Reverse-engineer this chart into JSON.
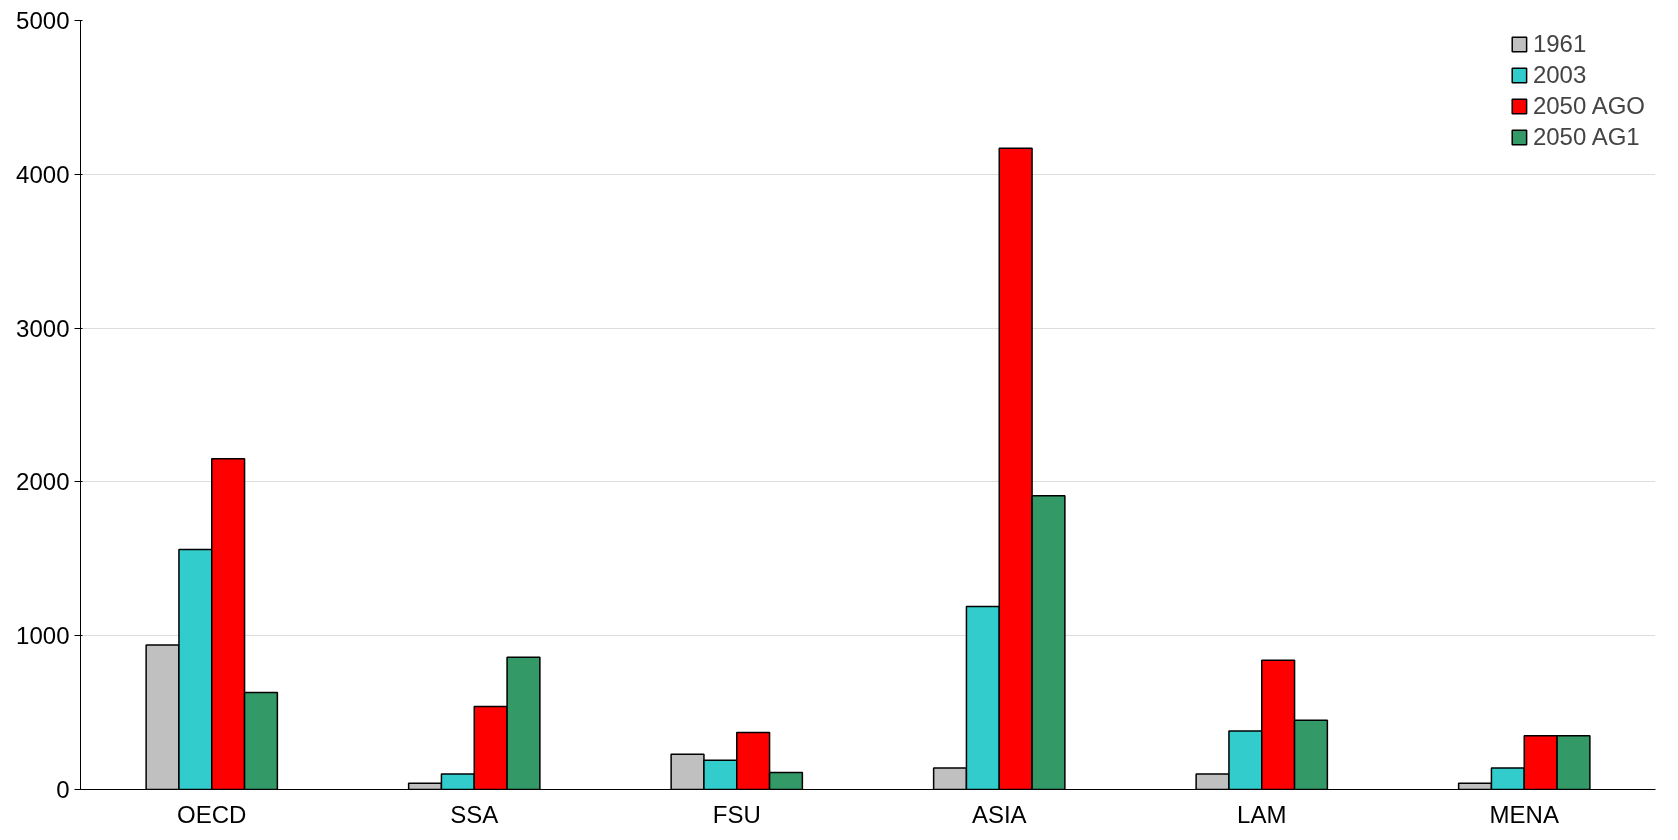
{
  "chart_data": {
    "type": "bar",
    "categories": [
      "OECD",
      "SSA",
      "FSU",
      "ASIA",
      "LAM",
      "MENA"
    ],
    "series": [
      {
        "name": "1961",
        "color": "#c0c0c0",
        "values": [
          940,
          40,
          230,
          140,
          100,
          40
        ]
      },
      {
        "name": "2003",
        "color": "#33cccc",
        "values": [
          1560,
          100,
          190,
          1190,
          380,
          140
        ]
      },
      {
        "name": "2050 AGO",
        "color": "#ff0000",
        "values": [
          2150,
          540,
          370,
          4170,
          840,
          350
        ]
      },
      {
        "name": "2050 AG1",
        "color": "#339966",
        "values": [
          630,
          860,
          110,
          1910,
          450,
          350
        ]
      }
    ],
    "ylim": [
      0,
      5000
    ],
    "yticks": [
      0,
      1000,
      2000,
      3000,
      4000,
      5000
    ],
    "grid": "y",
    "legend": "top right"
  }
}
